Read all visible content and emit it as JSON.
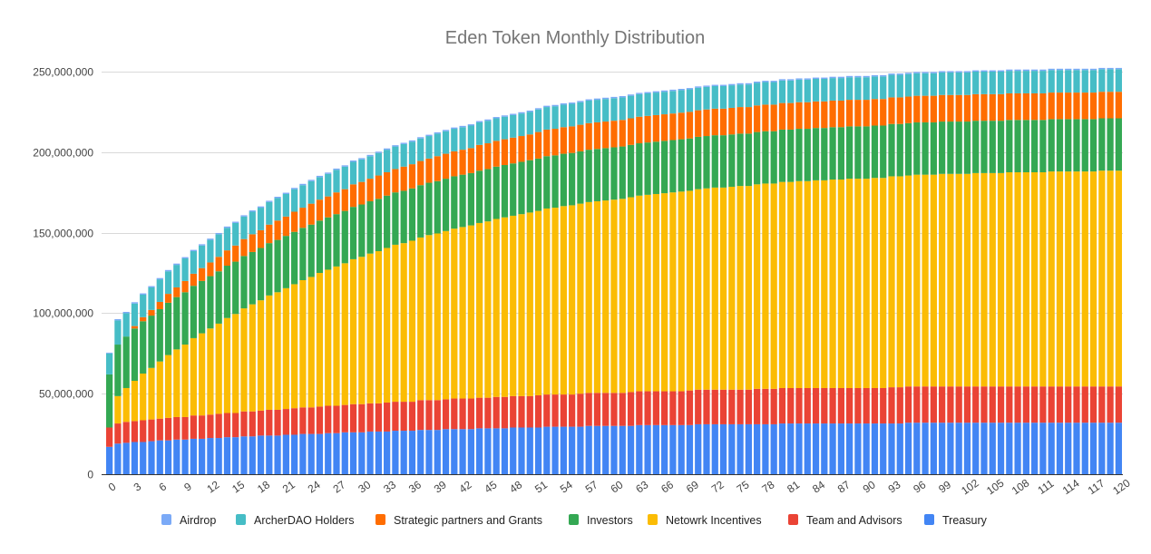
{
  "chart_data": {
    "type": "bar",
    "stacked": true,
    "title": "Eden Token  Monthly Distribution",
    "xlabel": "",
    "ylabel": "",
    "unit": "tokens (values in millions)",
    "ylim": [
      0,
      250000000
    ],
    "yticks": [
      0,
      50000000,
      100000000,
      150000000,
      200000000,
      250000000
    ],
    "ytick_labels": [
      "0",
      "50,000,000",
      "100,000,000",
      "150,000,000",
      "200,000,000",
      "250,000,000"
    ],
    "xlim": [
      0,
      120
    ],
    "xtick_step": 3,
    "grid": true,
    "legend_position": "bottom",
    "stack_order": [
      "Treasury",
      "Team and Advisors",
      "Netowrk Incentives",
      "Investors",
      "Strategic partners and Grants",
      "ArcherDAO Holders",
      "Airdrop"
    ],
    "legend_order": [
      "Airdrop",
      "ArcherDAO Holders",
      "Strategic partners and Grants",
      "Investors",
      "Netowrk Incentives",
      "Team and Advisors",
      "Treasury"
    ],
    "colors": {
      "Airdrop": "#7baaf7",
      "ArcherDAO Holders": "#46bdc6",
      "Strategic partners and Grants": "#ff6d01",
      "Investors": "#34a853",
      "Netowrk Incentives": "#fbbc04",
      "Team and Advisors": "#ea4335",
      "Treasury": "#4285f4"
    },
    "model_note_hidden": "",
    "series": [
      {
        "name": "Treasury",
        "values_millions": [
          17,
          19,
          19.5,
          20,
          20,
          20.5,
          21,
          21,
          21.5,
          21.5,
          22,
          22,
          22.5,
          22.5,
          23,
          23,
          23.5,
          23.5,
          24,
          24,
          24,
          24.5,
          24.5,
          25,
          25,
          25,
          25.5,
          25.5,
          26,
          26,
          26,
          26.5,
          26.5,
          26.5,
          27,
          27,
          27,
          27.5,
          27.5,
          27.5,
          28,
          28,
          28,
          28,
          28.5,
          28.5,
          28.5,
          28.5,
          29,
          29,
          29,
          29,
          29.5,
          29.5,
          29.5,
          29.5,
          29.5,
          30,
          30,
          30,
          30,
          30,
          30,
          30.5,
          30.5,
          30.5,
          30.5,
          30.5,
          30.5,
          30.5,
          31,
          31,
          31,
          31,
          31,
          31,
          31,
          31,
          31,
          31,
          31.5,
          31.5,
          31.5,
          31.5,
          31.5,
          31.5,
          31.5,
          31.5,
          31.5,
          31.5,
          31.5,
          31.5,
          31.5,
          31.5,
          31.5,
          32,
          32,
          32,
          32,
          32,
          32,
          32,
          32,
          32,
          32,
          32,
          32,
          32,
          32,
          32,
          32,
          32,
          32,
          32,
          32,
          32,
          32,
          32,
          32,
          32,
          32
        ]
      },
      {
        "name": "Team and Advisors",
        "values_millions": [
          12,
          12.5,
          13,
          13,
          13.5,
          13.5,
          13.5,
          14,
          14,
          14,
          14.5,
          14.5,
          14.5,
          15,
          15,
          15,
          15.5,
          15.5,
          15.5,
          16,
          16,
          16,
          16.5,
          16.5,
          16.5,
          17,
          17,
          17,
          17,
          17.5,
          17.5,
          17.5,
          17.5,
          18,
          18,
          18,
          18,
          18.5,
          18.5,
          18.5,
          18.5,
          19,
          19,
          19,
          19,
          19,
          19.5,
          19.5,
          19.5,
          19.5,
          19.5,
          20,
          20,
          20,
          20,
          20,
          20.5,
          20.5,
          20.5,
          20.5,
          20.5,
          20.5,
          21,
          21,
          21,
          21,
          21,
          21,
          21,
          21.5,
          21.5,
          21.5,
          21.5,
          21.5,
          21.5,
          21.5,
          21.5,
          22,
          22,
          22,
          22,
          22,
          22,
          22,
          22,
          22,
          22,
          22,
          22,
          22,
          22,
          22,
          22,
          22.5,
          22.5,
          22.5,
          22.5,
          22.5,
          22.5,
          22.5,
          22.5,
          22.5,
          22.5,
          22.5,
          22.5,
          22.5,
          22.5,
          22.5,
          22.5,
          22.5,
          22.5,
          22.5,
          22.5,
          22.5,
          22.5,
          22.5,
          22.5,
          22.5,
          22.5,
          22.5,
          22.5
        ]
      },
      {
        "name": "Netowrk Incentives",
        "values_millions": [
          0,
          17,
          21,
          25,
          29,
          32,
          35.5,
          39,
          42,
          45,
          48,
          51,
          53.5,
          56,
          59,
          61.5,
          64,
          66.5,
          68.5,
          71,
          73,
          75,
          77,
          79,
          81,
          83,
          84.5,
          86.5,
          88,
          90,
          91.5,
          93,
          94.5,
          96,
          97.5,
          98.5,
          100,
          101,
          102.5,
          103.5,
          104.5,
          105.5,
          106.5,
          107.5,
          108.5,
          109.5,
          110.5,
          111.5,
          112,
          113,
          114,
          114.5,
          115.5,
          116,
          117,
          117.5,
          118,
          118.5,
          119,
          119.5,
          120,
          120.5,
          121,
          121.5,
          122,
          122.5,
          123,
          123.5,
          124,
          124,
          124.5,
          125,
          125.5,
          125.5,
          126,
          126.5,
          126.5,
          127,
          127.5,
          127.5,
          128,
          128,
          128.5,
          128.5,
          129,
          129,
          129.5,
          129.5,
          130,
          130,
          130,
          130.5,
          130.5,
          131,
          131,
          131,
          131.5,
          131.5,
          131.5,
          132,
          132,
          132,
          132,
          132.5,
          132.5,
          132.5,
          132.5,
          133,
          133,
          133,
          133,
          133,
          133.5,
          133.5,
          133.5,
          133.5,
          133.5,
          133.5,
          134,
          134,
          134
        ]
      },
      {
        "name": "Investors",
        "values_millions": [
          33,
          32,
          32,
          32.5,
          32.5,
          32.5,
          32.5,
          32.5,
          32.5,
          32.5,
          32.5,
          32.5,
          32.5,
          32.5,
          32.5,
          32.5,
          32.5,
          32.5,
          32.5,
          32.5,
          32.5,
          32.5,
          32.5,
          32.5,
          32.5,
          32.5,
          32.5,
          32.5,
          32.5,
          32.5,
          32.5,
          32.5,
          32.5,
          32.5,
          32.5,
          32.5,
          32.5,
          32.5,
          32.5,
          32.5,
          32.5,
          32.5,
          32.5,
          32.5,
          32.5,
          32.5,
          32.5,
          32.5,
          32.5,
          32.5,
          32.5,
          32.5,
          32.5,
          32.5,
          32.5,
          32.5,
          32.5,
          32.5,
          32.5,
          32.5,
          32.5,
          32.5,
          32.5,
          32.5,
          32.5,
          32.5,
          32.5,
          32.5,
          32.5,
          32.5,
          32.5,
          32.5,
          32.5,
          32.5,
          32.5,
          32.5,
          32.5,
          32.5,
          32.5,
          32.5,
          32.5,
          32.5,
          32.5,
          32.5,
          32.5,
          32.5,
          32.5,
          32.5,
          32.5,
          32.5,
          32.5,
          32.5,
          32.5,
          32.5,
          32.5,
          32.5,
          32.5,
          32.5,
          32.5,
          32.5,
          32.5,
          32.5,
          32.5,
          32.5,
          32.5,
          32.5,
          32.5,
          32.5,
          32.5,
          32.5,
          32.5,
          32.5,
          32.5,
          32.5,
          32.5,
          32.5,
          32.5,
          32.5,
          32.5,
          32.5,
          32.5
        ]
      },
      {
        "name": "Strategic partners and Grants",
        "values_millions": [
          0,
          0,
          0,
          1.5,
          2.5,
          3.5,
          4.5,
          5.5,
          6,
          7,
          7.5,
          8,
          8.5,
          9,
          9.5,
          10,
          10.5,
          11,
          11,
          11.5,
          12,
          12,
          12.5,
          12.5,
          13,
          13,
          13,
          13.5,
          13.5,
          14,
          14,
          14,
          14.5,
          14.5,
          14.5,
          15,
          15,
          15,
          15,
          15.5,
          15.5,
          15.5,
          15.5,
          15.5,
          16,
          16,
          16,
          16,
          16,
          16,
          16,
          16.5,
          16.5,
          16.5,
          16.5,
          16.5,
          16.5,
          16.5,
          16.5,
          16.5,
          16.5,
          16.5,
          16.5,
          16.5,
          16.5,
          16.5,
          16.5,
          16.5,
          16.5,
          16.5,
          16.5,
          16.5,
          16.5,
          16.5,
          16.5,
          16.5,
          16.5,
          16.5,
          16.5,
          16.5,
          16.5,
          16.5,
          16.5,
          16.5,
          16.5,
          16.5,
          16.5,
          16.5,
          16.5,
          16.5,
          16.5,
          16.5,
          16.5,
          16.5,
          16.5,
          16.5,
          16.5,
          16.5,
          16.5,
          16.5,
          16.5,
          16.5,
          16.5,
          16.5,
          16.5,
          16.5,
          16.5,
          16.5,
          16.5,
          16.5,
          16.5,
          16.5,
          16.5,
          16.5,
          16.5,
          16.5,
          16.5,
          16.5,
          16.5,
          16.5,
          16.5
        ]
      },
      {
        "name": "ArcherDAO Holders",
        "values_millions": [
          13,
          15,
          14.5,
          14,
          14,
          14,
          14,
          14,
          14,
          14,
          14,
          14,
          14,
          14,
          14,
          14,
          14,
          14,
          14,
          14,
          14,
          14,
          14,
          14,
          14,
          14,
          14,
          14,
          14,
          14,
          14,
          14,
          14,
          14,
          14,
          14,
          14,
          14,
          14,
          14,
          14,
          14,
          14,
          14,
          14,
          14,
          14,
          14,
          14,
          14,
          14,
          14,
          14,
          14,
          14,
          14,
          14,
          14,
          14,
          14,
          14,
          14,
          14,
          14,
          14,
          14,
          14,
          14,
          14,
          14,
          14,
          14,
          14,
          14,
          14,
          14,
          14,
          14,
          14,
          14,
          14,
          14,
          14,
          14,
          14,
          14,
          14,
          14,
          14,
          14,
          14,
          14,
          14,
          14,
          14,
          14,
          14,
          14,
          14,
          14,
          14,
          14,
          14,
          14,
          14,
          14,
          14,
          14,
          14,
          14,
          14,
          14,
          14,
          14,
          14,
          14,
          14,
          14,
          14,
          14,
          14
        ]
      },
      {
        "name": "Airdrop",
        "values_millions": [
          0.5,
          0.8,
          0.8,
          0.8,
          0.8,
          0.8,
          0.8,
          0.8,
          0.8,
          0.8,
          0.8,
          0.8,
          0.8,
          0.8,
          0.8,
          0.8,
          0.8,
          0.8,
          0.8,
          0.8,
          0.8,
          0.8,
          0.8,
          0.8,
          0.8,
          0.8,
          0.8,
          0.8,
          0.8,
          0.8,
          0.8,
          0.8,
          0.8,
          0.8,
          0.8,
          0.8,
          0.8,
          0.8,
          0.8,
          0.8,
          0.8,
          0.8,
          0.8,
          0.8,
          0.8,
          0.8,
          0.8,
          0.8,
          0.8,
          0.8,
          0.8,
          0.8,
          0.8,
          0.8,
          0.8,
          0.8,
          0.8,
          0.8,
          0.8,
          0.8,
          0.8,
          0.8,
          0.8,
          0.8,
          0.8,
          0.8,
          0.8,
          0.8,
          0.8,
          0.8,
          0.8,
          0.8,
          0.8,
          0.8,
          0.8,
          0.8,
          0.8,
          0.8,
          0.8,
          0.8,
          0.8,
          0.8,
          0.8,
          0.8,
          0.8,
          0.8,
          0.8,
          0.8,
          0.8,
          0.8,
          0.8,
          0.8,
          0.8,
          0.8,
          0.8,
          0.8,
          0.8,
          0.8,
          0.8,
          0.8,
          0.8,
          0.8,
          0.8,
          0.8,
          0.8,
          0.8,
          0.8,
          0.8,
          0.8,
          0.8,
          0.8,
          0.8,
          0.8,
          0.8,
          0.8,
          0.8,
          0.8,
          0.8,
          0.8,
          0.8,
          0.8
        ]
      }
    ]
  }
}
